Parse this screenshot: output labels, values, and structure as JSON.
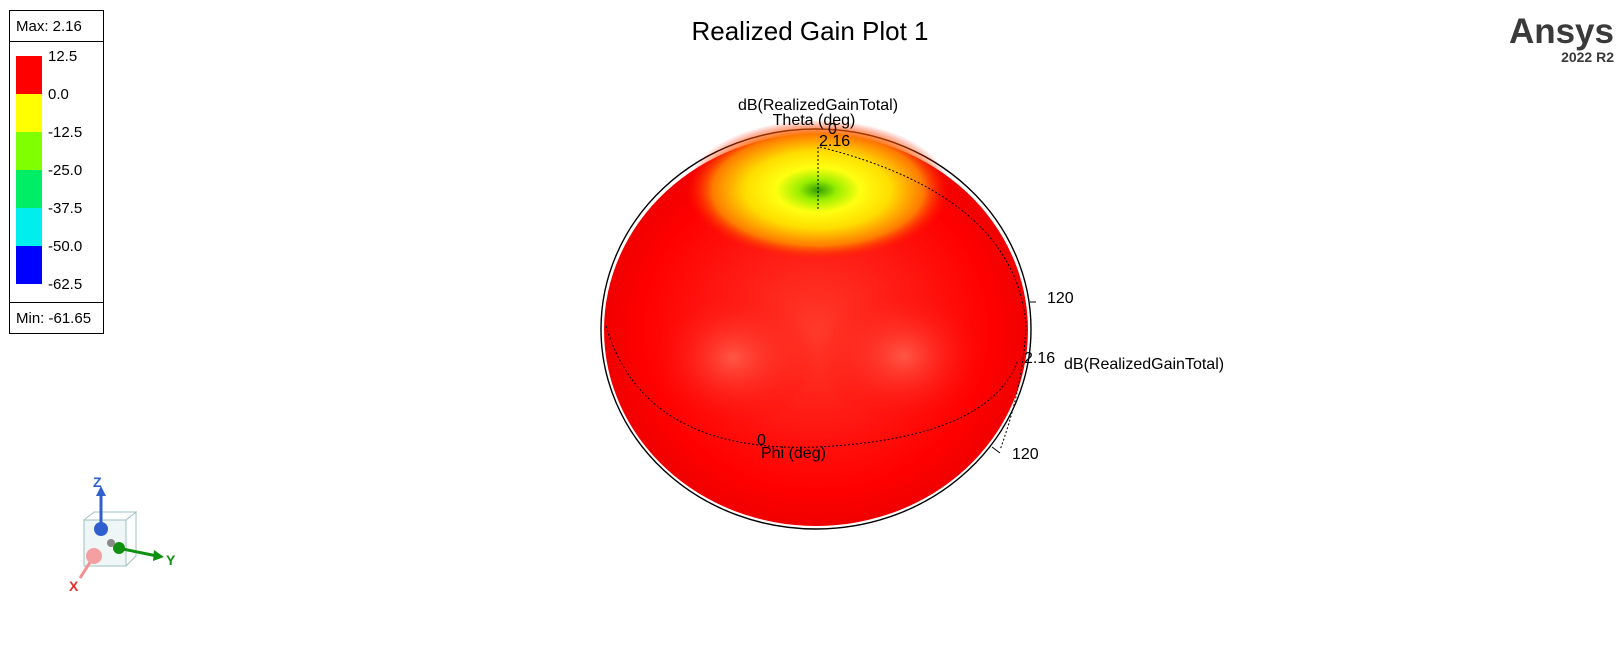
{
  "title": "Realized Gain Plot 1",
  "brand": {
    "name": "Ansys",
    "version": "2022 R2"
  },
  "legend": {
    "max_label": "Max: 2.16",
    "min_label": "Min: -61.65",
    "ticks": [
      "12.5",
      "0.0",
      "-12.5",
      "-25.0",
      "-37.5",
      "-50.0",
      "-62.5"
    ],
    "colors": [
      "#ff0000",
      "#ffff00",
      "#80ff00",
      "#00ee66",
      "#00eeee",
      "#0000ff"
    ]
  },
  "chart_data": {
    "type": "3d-polar",
    "title": "Realized Gain Plot 1",
    "quantity": "dB(RealizedGainTotal)",
    "max": 2.16,
    "min": -61.65,
    "theta_axis": {
      "label": "Theta (deg)",
      "ticks": [
        "0",
        "120"
      ]
    },
    "phi_axis": {
      "label": "Phi (deg)",
      "ticks": [
        "0",
        "120"
      ]
    },
    "radial_axis": {
      "label": "dB(RealizedGainTotal)",
      "value": "2.16"
    },
    "colorscale": [
      {
        "value": 12.5,
        "color": "#ff0000"
      },
      {
        "value": 0.0,
        "color": "#ffff00"
      },
      {
        "value": -12.5,
        "color": "#80ff00"
      },
      {
        "value": -25.0,
        "color": "#00ee66"
      },
      {
        "value": -37.5,
        "color": "#00eeee"
      },
      {
        "value": -50.0,
        "color": "#0000ff"
      }
    ]
  },
  "labels": {
    "quantity_top": "dB(RealizedGainTotal)",
    "theta": "Theta (deg)",
    "theta_zero": "0",
    "max_top": "2.16",
    "tick_120_right": "120",
    "max_right": "2.16",
    "quantity_right": "dB(RealizedGainTotal)",
    "phi_zero": "0",
    "phi": "Phi (deg)",
    "tick_120_lower": "120"
  },
  "triad": {
    "z": "Z",
    "y": "Y",
    "x": "X",
    "z_color": "#3060d0",
    "y_color": "#109010",
    "x_color": "#e03030"
  }
}
